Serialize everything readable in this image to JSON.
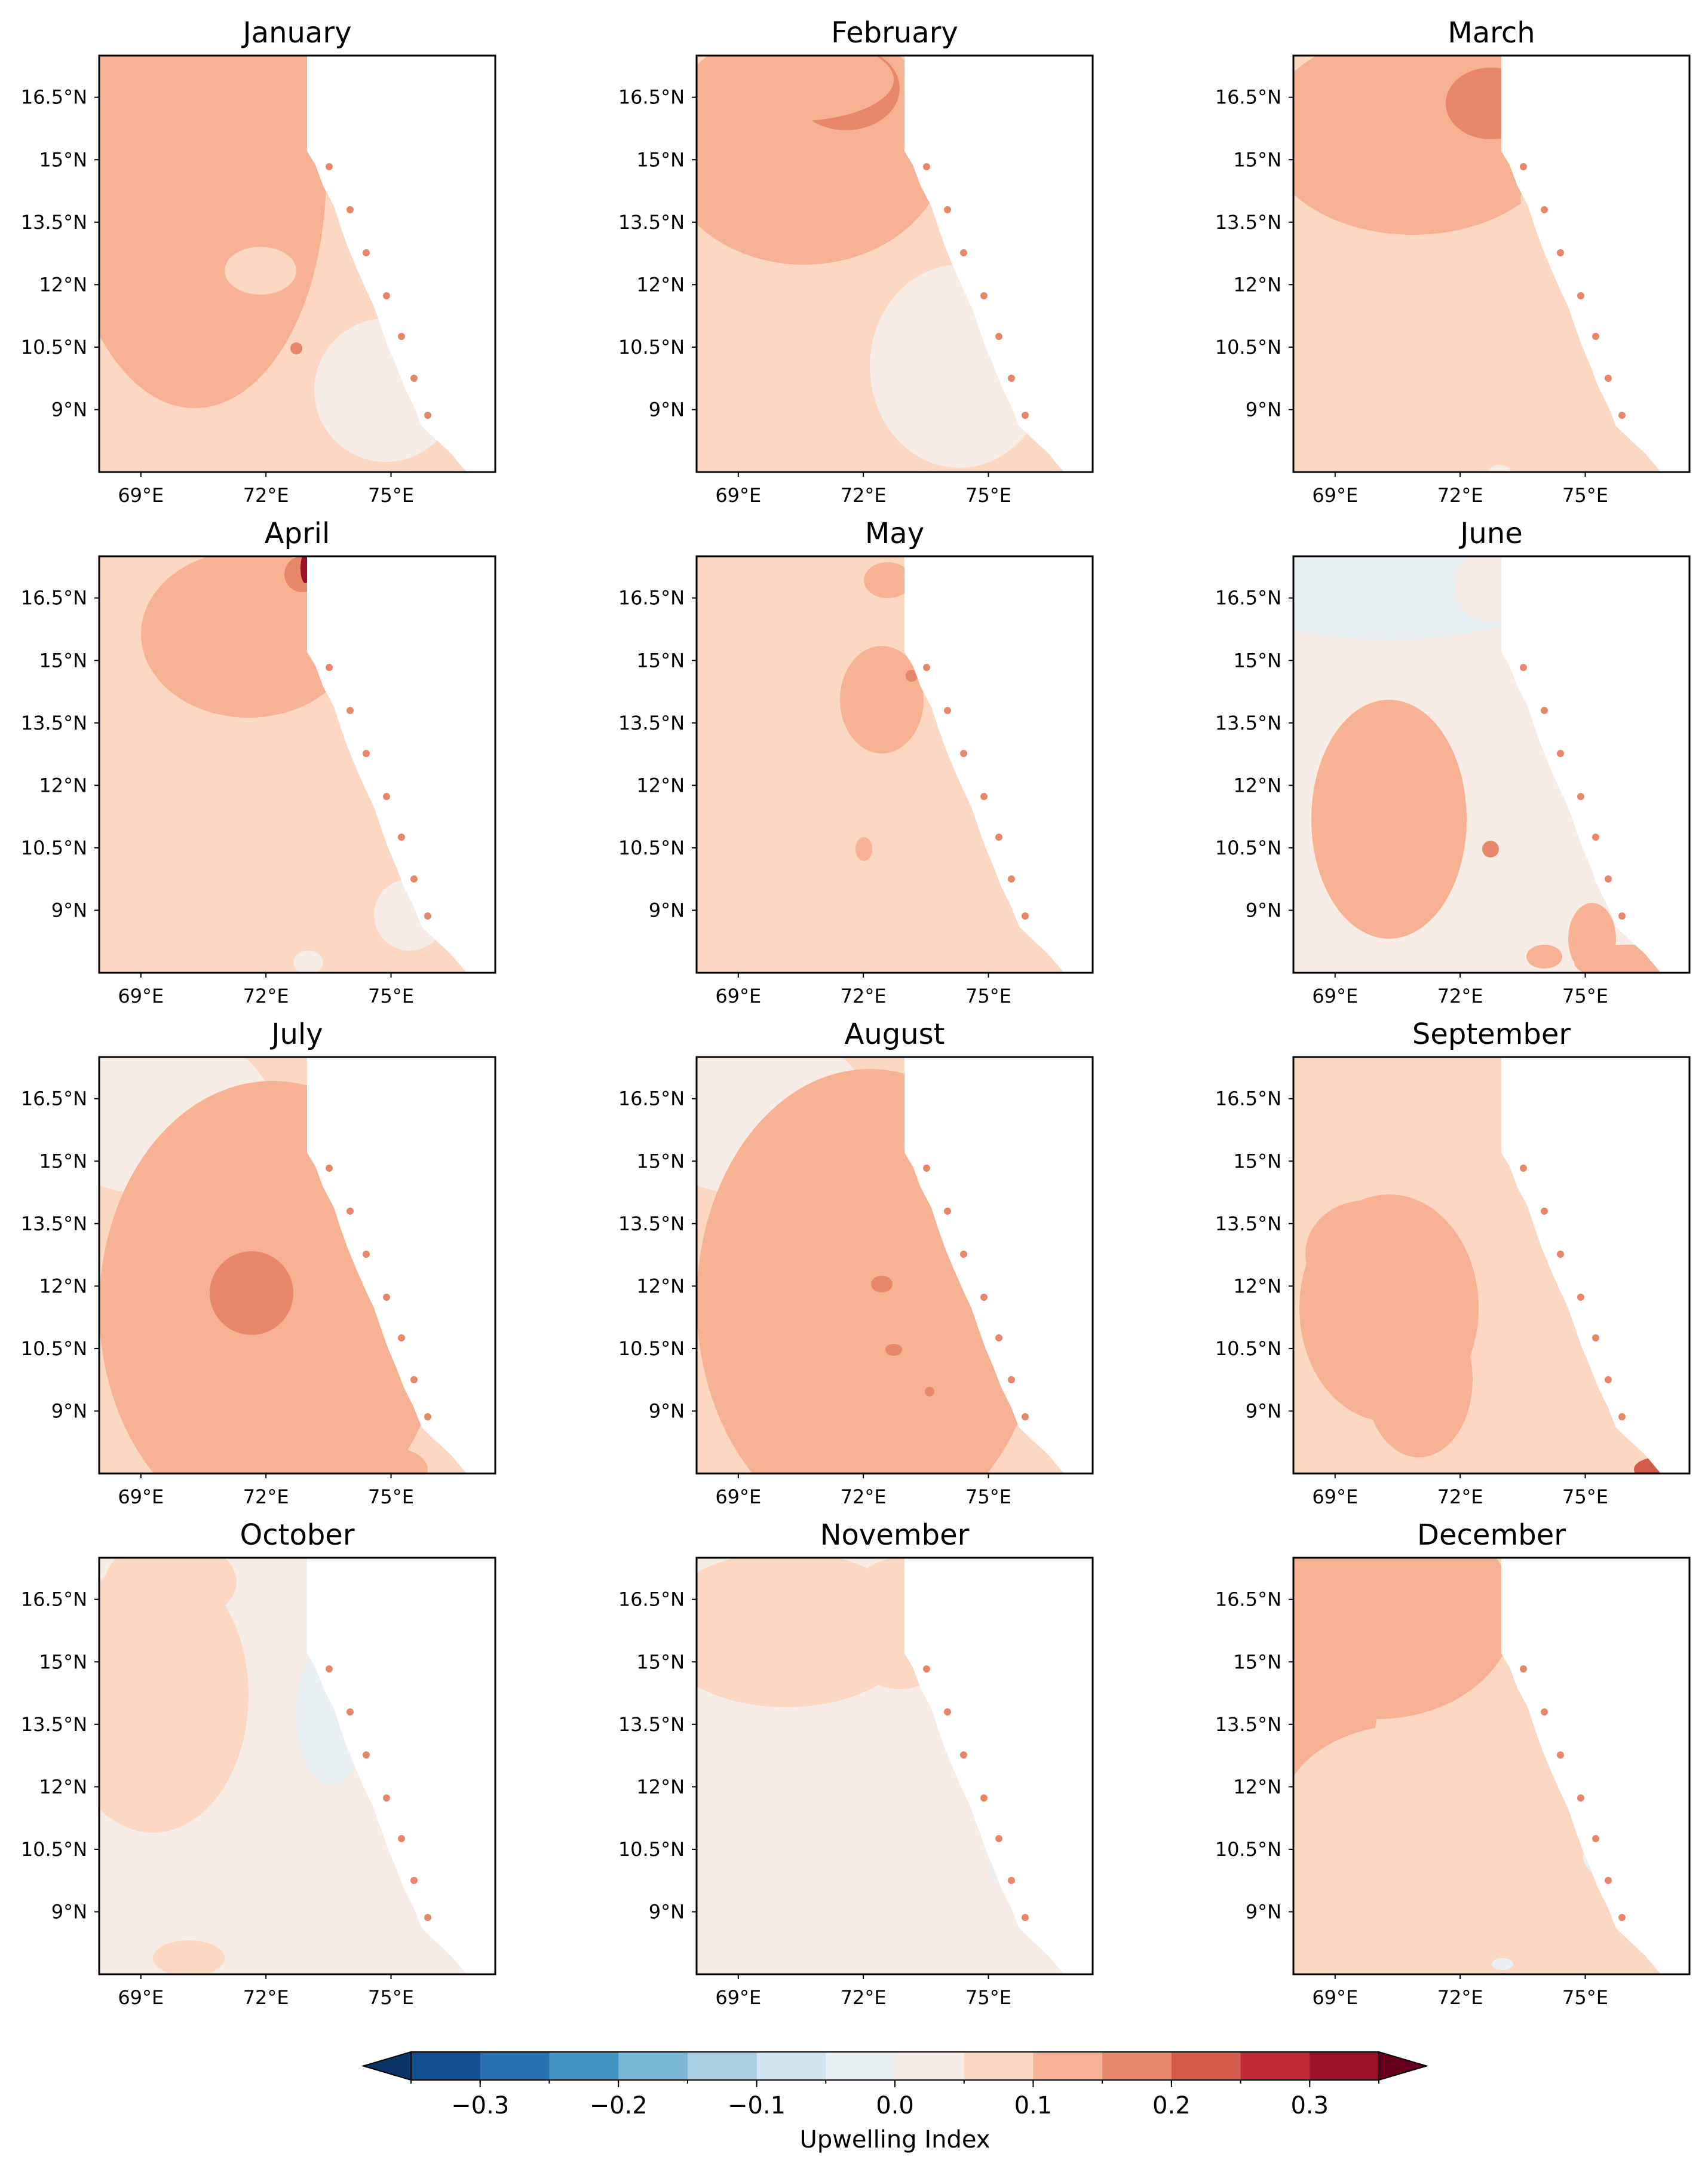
{
  "figure": {
    "panels": [
      {
        "title": "January"
      },
      {
        "title": "February"
      },
      {
        "title": "March"
      },
      {
        "title": "April"
      },
      {
        "title": "May"
      },
      {
        "title": "June"
      },
      {
        "title": "July"
      },
      {
        "title": "August"
      },
      {
        "title": "September"
      },
      {
        "title": "October"
      },
      {
        "title": "November"
      },
      {
        "title": "December"
      }
    ],
    "lat_ticks": [
      "16.5°N",
      "15°N",
      "13.5°N",
      "12°N",
      "10.5°N",
      "9°N"
    ],
    "lon_ticks": [
      "69°E",
      "72°E",
      "75°E"
    ],
    "colorbar": {
      "label": "Upwelling Index",
      "tick_labels": [
        "−0.3",
        "−0.2",
        "−0.1",
        "0.0",
        "0.1",
        "0.2",
        "0.3"
      ],
      "tick_values": [
        -0.3,
        -0.2,
        -0.1,
        0.0,
        0.1,
        0.2,
        0.3
      ],
      "levels": [
        -0.35,
        -0.3,
        -0.25,
        -0.2,
        -0.15,
        -0.1,
        -0.05,
        0.0,
        0.05,
        0.1,
        0.15,
        0.2,
        0.25,
        0.3,
        0.35
      ],
      "colors": [
        "#14508f",
        "#2a71b2",
        "#4394c3",
        "#79b6d7",
        "#a7d0e4",
        "#d1e5f0",
        "#eaf1f4",
        "#f8ece6",
        "#fcd7c1",
        "#f6b293",
        "#e78769",
        "#d45a4a",
        "#bf2c34",
        "#9b1127"
      ],
      "under_color": "#0b3466",
      "over_color": "#67001f",
      "extend": "both"
    },
    "map": {
      "lon_range": [
        68,
        77.5
      ],
      "lat_range": [
        7.5,
        17.5
      ],
      "land_color": "#ffffff"
    }
  }
}
